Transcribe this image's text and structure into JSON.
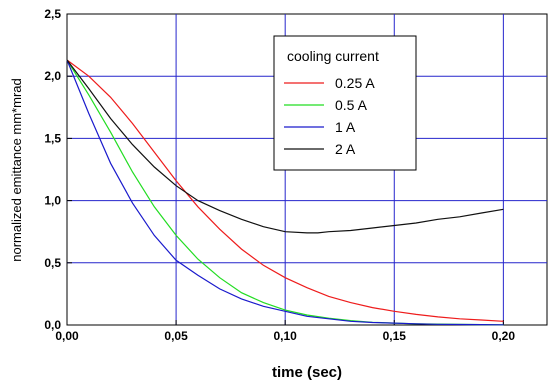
{
  "chart_data": {
    "type": "line",
    "xlabel": "time (sec)",
    "ylabel": "normalized emittance mm*mrad",
    "xlim": [
      0,
      0.22
    ],
    "ylim": [
      0,
      2.5
    ],
    "x_ticks": [
      "0,00",
      "0,05",
      "0,10",
      "0,15",
      "0,20"
    ],
    "y_ticks": [
      "0,0",
      "0,5",
      "1,0",
      "1,5",
      "2,0",
      "2,5"
    ],
    "grid": true,
    "legend": {
      "title": "cooling current",
      "placement": "top-right"
    },
    "series": [
      {
        "name": "0.25 A",
        "color": "#ee1c1c",
        "points": [
          [
            0,
            2.13
          ],
          [
            0.01,
            2.0
          ],
          [
            0.02,
            1.83
          ],
          [
            0.03,
            1.62
          ],
          [
            0.04,
            1.39
          ],
          [
            0.05,
            1.16
          ],
          [
            0.06,
            0.95
          ],
          [
            0.07,
            0.77
          ],
          [
            0.08,
            0.61
          ],
          [
            0.09,
            0.48
          ],
          [
            0.1,
            0.38
          ],
          [
            0.11,
            0.3
          ],
          [
            0.12,
            0.23
          ],
          [
            0.13,
            0.18
          ],
          [
            0.14,
            0.14
          ],
          [
            0.15,
            0.11
          ],
          [
            0.16,
            0.085
          ],
          [
            0.17,
            0.065
          ],
          [
            0.18,
            0.05
          ],
          [
            0.19,
            0.04
          ],
          [
            0.2,
            0.03
          ]
        ]
      },
      {
        "name": "0.5 A",
        "color": "#22dd22",
        "points": [
          [
            0,
            2.13
          ],
          [
            0.01,
            1.85
          ],
          [
            0.02,
            1.55
          ],
          [
            0.03,
            1.23
          ],
          [
            0.04,
            0.95
          ],
          [
            0.05,
            0.72
          ],
          [
            0.06,
            0.53
          ],
          [
            0.07,
            0.38
          ],
          [
            0.08,
            0.26
          ],
          [
            0.09,
            0.18
          ],
          [
            0.1,
            0.12
          ],
          [
            0.11,
            0.08
          ],
          [
            0.12,
            0.055
          ],
          [
            0.13,
            0.035
          ],
          [
            0.14,
            0.022
          ],
          [
            0.15,
            0.015
          ],
          [
            0.16,
            0.01
          ],
          [
            0.17,
            0.007
          ],
          [
            0.18,
            0.005
          ],
          [
            0.19,
            0.003
          ],
          [
            0.2,
            0.002
          ]
        ]
      },
      {
        "name": "1 A",
        "color": "#1a1acc",
        "points": [
          [
            0,
            2.13
          ],
          [
            0.01,
            1.7
          ],
          [
            0.02,
            1.3
          ],
          [
            0.03,
            0.98
          ],
          [
            0.04,
            0.72
          ],
          [
            0.05,
            0.52
          ],
          [
            0.06,
            0.4
          ],
          [
            0.07,
            0.29
          ],
          [
            0.08,
            0.21
          ],
          [
            0.09,
            0.15
          ],
          [
            0.1,
            0.11
          ],
          [
            0.11,
            0.07
          ],
          [
            0.12,
            0.05
          ],
          [
            0.13,
            0.03
          ],
          [
            0.14,
            0.02
          ],
          [
            0.15,
            0.015
          ],
          [
            0.16,
            0.01
          ],
          [
            0.17,
            0.006
          ],
          [
            0.18,
            0.004
          ],
          [
            0.19,
            0.003
          ],
          [
            0.2,
            0.002
          ]
        ]
      },
      {
        "name": "2 A",
        "color": "#111111",
        "points": [
          [
            0,
            2.13
          ],
          [
            0.01,
            1.9
          ],
          [
            0.02,
            1.66
          ],
          [
            0.03,
            1.45
          ],
          [
            0.04,
            1.27
          ],
          [
            0.05,
            1.12
          ],
          [
            0.06,
            1.0
          ],
          [
            0.07,
            0.92
          ],
          [
            0.08,
            0.85
          ],
          [
            0.09,
            0.79
          ],
          [
            0.1,
            0.75
          ],
          [
            0.11,
            0.74
          ],
          [
            0.115,
            0.74
          ],
          [
            0.12,
            0.75
          ],
          [
            0.13,
            0.76
          ],
          [
            0.14,
            0.78
          ],
          [
            0.15,
            0.8
          ],
          [
            0.16,
            0.82
          ],
          [
            0.17,
            0.85
          ],
          [
            0.18,
            0.87
          ],
          [
            0.19,
            0.9
          ],
          [
            0.2,
            0.93
          ]
        ]
      }
    ]
  }
}
